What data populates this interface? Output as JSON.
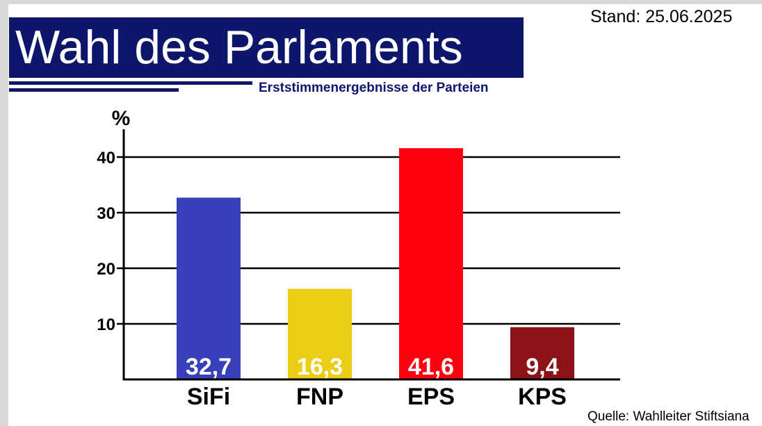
{
  "header": {
    "title": "Wahl des Parlaments",
    "subtitle": "Erststimmenergebnisse der Parteien",
    "stand": "Stand: 25.06.2025"
  },
  "footer": {
    "source": "Quelle: Wahlleiter Stiftsiana"
  },
  "colors": {
    "title_background": "#0d166b",
    "subtitle_text": "#0d166b"
  },
  "chart_data": {
    "type": "bar",
    "title": "Wahl des Parlaments",
    "subtitle": "Erststimmenergebnisse der Parteien",
    "ylabel": "%",
    "xlabel": "",
    "categories": [
      "SiFi",
      "FNP",
      "EPS",
      "KPS"
    ],
    "values": [
      32.7,
      16.3,
      41.6,
      9.4
    ],
    "value_labels": [
      "32,7",
      "16,3",
      "41,6",
      "9,4"
    ],
    "colors": [
      "#3740b8",
      "#eccd15",
      "#ff0010",
      "#8b1318"
    ],
    "yticks": [
      10,
      20,
      30,
      40
    ],
    "ylim": [
      0,
      45
    ],
    "grid": true,
    "legend": "none"
  }
}
